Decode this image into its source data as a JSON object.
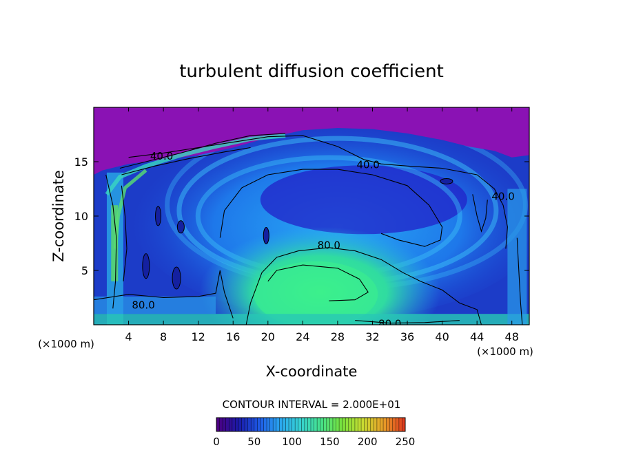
{
  "chart_data": {
    "type": "heatmap",
    "title": "turbulent diffusion coefficient",
    "xlabel": "X-coordinate",
    "ylabel": "Z-coordinate",
    "x_unit_left": "(×1000 m)",
    "x_unit_right": "(×1000 m)",
    "xlim": [
      0,
      50
    ],
    "ylim": [
      0,
      20
    ],
    "x_ticks": [
      4,
      8,
      12,
      16,
      20,
      24,
      28,
      32,
      36,
      40,
      44,
      48
    ],
    "y_ticks": [
      5,
      10,
      15
    ],
    "contour_interval_text": "CONTOUR INTERVAL = 2.000E+01",
    "contour_labels": [
      {
        "text": "40.0",
        "x": 31.5,
        "y": 14.7
      },
      {
        "text": "40.0",
        "x": 47.0,
        "y": 11.8
      },
      {
        "text": "40.0",
        "x": 7.8,
        "y": 15.5
      },
      {
        "text": "80.0",
        "x": 27.0,
        "y": 7.3
      },
      {
        "text": "80.0",
        "x": 5.7,
        "y": 1.8
      },
      {
        "text": "80.0",
        "x": 34.0,
        "y": 0.1
      }
    ],
    "colorbar": {
      "min": 0,
      "max": 250,
      "ticks": [
        0,
        50,
        100,
        150,
        200,
        250
      ],
      "colors": [
        "#4b0082",
        "#1a1aa8",
        "#1e5ae6",
        "#2aa6f0",
        "#36d2d2",
        "#46e28a",
        "#78e23c",
        "#c8dc32",
        "#e8a028",
        "#e03c1e"
      ]
    },
    "colors": {
      "background_field": "#8a12b4",
      "low": "#2222c8",
      "mid": "#1e8cf0",
      "high": "#3cf08c",
      "contour": "#000000"
    },
    "features": {
      "low_region_top": "values near 0 above the domain top (z ≈ 17–19)",
      "core_maximum": "about 100–130 near x ≈ 26, z ≈ 3",
      "central_eddy": "large clockwise eddy centered near x ≈ 28, z ≈ 10"
    }
  }
}
